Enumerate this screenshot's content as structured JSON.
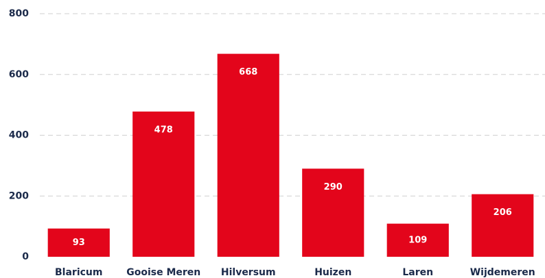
{
  "chart_data": {
    "type": "bar",
    "categories": [
      "Blaricum",
      "Gooise Meren",
      "Hilversum",
      "Huizen",
      "Laren",
      "Wijdemeren"
    ],
    "values": [
      93,
      478,
      668,
      290,
      109,
      206
    ],
    "color": "#e3051b",
    "ylim": [
      0,
      800
    ],
    "yticks": [
      0,
      200,
      400,
      600,
      800
    ],
    "grid": true
  }
}
